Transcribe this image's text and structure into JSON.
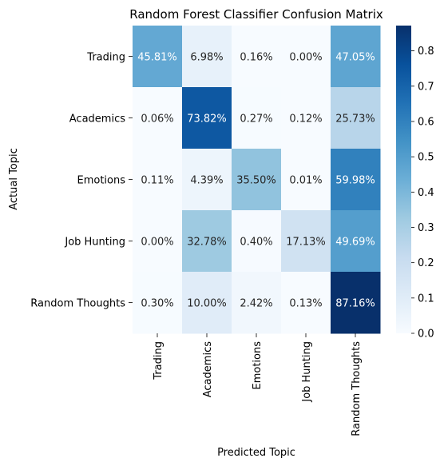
{
  "chart_data": {
    "type": "heatmap",
    "title": "Random Forest Classifier Confusion Matrix",
    "xlabel": "Predicted Topic",
    "ylabel": "Actual Topic",
    "x_categories": [
      "Trading",
      "Academics",
      "Emotions",
      "Job Hunting",
      "Random Thoughts"
    ],
    "y_categories": [
      "Trading",
      "Academics",
      "Emotions",
      "Job Hunting",
      "Random Thoughts"
    ],
    "values": [
      [
        0.4581,
        0.0698,
        0.0016,
        0.0,
        0.4705
      ],
      [
        0.0006,
        0.7382,
        0.0027,
        0.0012,
        0.2573
      ],
      [
        0.0011,
        0.0439,
        0.355,
        0.0001,
        0.5998
      ],
      [
        0.0,
        0.3278,
        0.004,
        0.1713,
        0.4969
      ],
      [
        0.003,
        0.1,
        0.0242,
        0.0013,
        0.8716
      ]
    ],
    "annotations": [
      [
        "45.81%",
        "6.98%",
        "0.16%",
        "0.00%",
        "47.05%"
      ],
      [
        "0.06%",
        "73.82%",
        "0.27%",
        "0.12%",
        "25.73%"
      ],
      [
        "0.11%",
        "4.39%",
        "35.50%",
        "0.01%",
        "59.98%"
      ],
      [
        "0.00%",
        "32.78%",
        "0.40%",
        "17.13%",
        "49.69%"
      ],
      [
        "0.30%",
        "10.00%",
        "2.42%",
        "0.13%",
        "87.16%"
      ]
    ],
    "colorbar": {
      "range": [
        0,
        0.8716
      ],
      "ticks": [
        "0.0",
        "0.1",
        "0.2",
        "0.3",
        "0.4",
        "0.5",
        "0.6",
        "0.7",
        "0.8"
      ],
      "colormap": "Blues",
      "low_color": "#f7fbff",
      "high_color": "#08306b"
    }
  }
}
